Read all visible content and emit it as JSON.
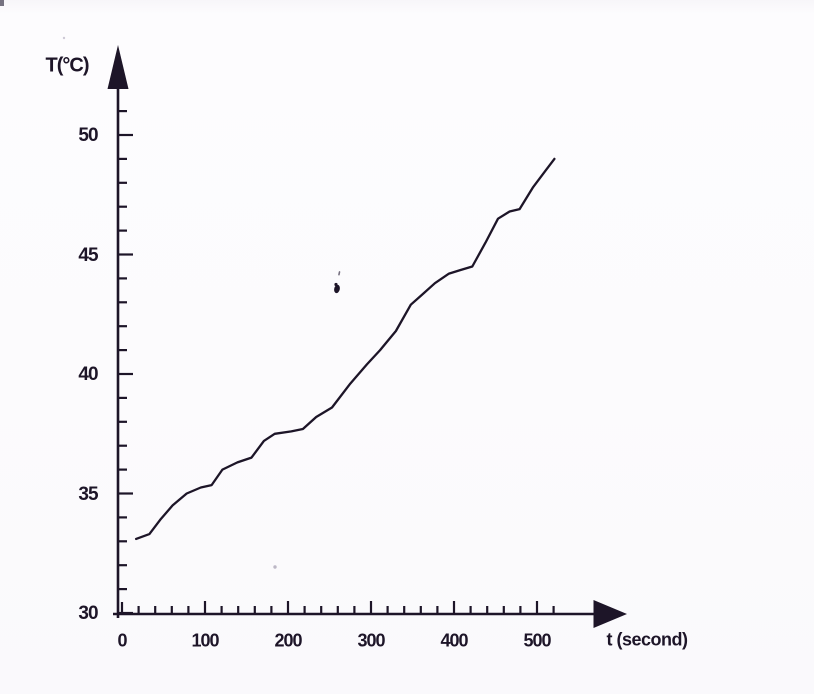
{
  "figure": {
    "background": "#fcfbfd",
    "ink_color": "#1d1528"
  },
  "chart_data": {
    "type": "line",
    "title": "",
    "xlabel": "t (second)",
    "ylabel": "T(°C)",
    "xlim": [
      0,
      560
    ],
    "ylim": [
      30,
      52
    ],
    "x_ticks": [
      0,
      100,
      200,
      300,
      400,
      500
    ],
    "y_ticks": [
      30,
      35,
      40,
      45,
      50
    ],
    "x_minor_step": 20,
    "y_minor_step": 1,
    "grid": false,
    "legend": false,
    "series": [
      {
        "name": "temperature-vs-time",
        "points": [
          [
            17,
            33.1
          ],
          [
            33,
            33.3
          ],
          [
            46,
            33.9
          ],
          [
            61,
            34.5
          ],
          [
            78,
            35.0
          ],
          [
            95,
            35.25
          ],
          [
            108,
            35.35
          ],
          [
            121,
            36.0
          ],
          [
            139,
            36.3
          ],
          [
            156,
            36.5
          ],
          [
            171,
            37.2
          ],
          [
            184,
            37.5
          ],
          [
            204,
            37.6
          ],
          [
            218,
            37.7
          ],
          [
            234,
            38.2
          ],
          [
            253,
            38.6
          ],
          [
            275,
            39.6
          ],
          [
            295,
            40.4
          ],
          [
            311,
            41.0
          ],
          [
            330,
            41.8
          ],
          [
            348,
            42.9
          ],
          [
            361,
            43.3
          ],
          [
            377,
            43.8
          ],
          [
            394,
            44.2
          ],
          [
            408,
            44.35
          ],
          [
            422,
            44.5
          ],
          [
            438,
            45.5
          ],
          [
            453,
            46.5
          ],
          [
            467,
            46.8
          ],
          [
            479,
            46.9
          ],
          [
            495,
            47.8
          ],
          [
            510,
            48.5
          ],
          [
            521,
            49.0
          ]
        ]
      }
    ]
  },
  "labels": {
    "y_axis_title": "T(°C)",
    "x_axis_title": "t (second)",
    "y_tick_labels": [
      "30",
      "35",
      "40",
      "45",
      "50"
    ],
    "x_tick_labels": [
      "0",
      "100",
      "200",
      "300",
      "400",
      "500"
    ]
  }
}
